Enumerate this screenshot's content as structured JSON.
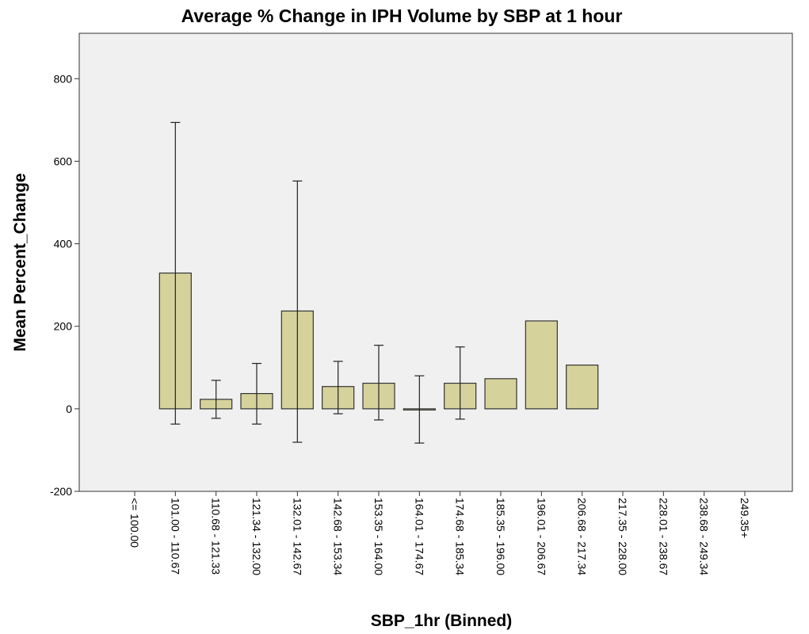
{
  "chart_data": {
    "type": "bar",
    "title": "Average % Change in IPH Volume by SBP at 1 hour",
    "x_label": "SBP_1hr (Binned)",
    "y_label": "Mean Percent_Change",
    "categories": [
      "<= 100.00",
      "101.00 - 110.67",
      "110.68 - 121.33",
      "121.34 - 132.00",
      "132.01 - 142.67",
      "142.68 - 153.34",
      "153.35 - 164.00",
      "164.01 - 174.67",
      "174.68 - 185.34",
      "185.35 - 196.00",
      "196.01 - 206.67",
      "206.68 - 217.34",
      "217.35 - 228.00",
      "228.01 - 238.67",
      "238.68 - 249.34",
      "249.35+"
    ],
    "values": [
      null,
      329,
      23,
      37,
      237,
      54,
      62,
      -2,
      62,
      73,
      213,
      106,
      null,
      null,
      null,
      null
    ],
    "ci_low": [
      null,
      -37,
      -23,
      -37,
      -81,
      -12,
      -27,
      -83,
      -25,
      null,
      null,
      null,
      null,
      null,
      null,
      null
    ],
    "ci_high": [
      null,
      694,
      69,
      110,
      552,
      115,
      154,
      80,
      150,
      null,
      null,
      null,
      null,
      null,
      null,
      null
    ],
    "color": "#d6d29c",
    "ylim": [
      -200,
      910
    ],
    "yticks": [
      -200,
      0,
      200,
      400,
      600,
      800
    ],
    "grid": false
  }
}
